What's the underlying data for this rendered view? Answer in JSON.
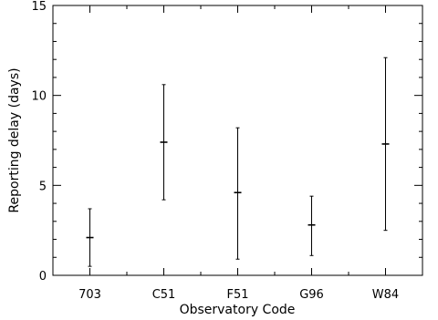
{
  "chart_data": {
    "type": "errorbar",
    "title": "",
    "xlabel": "Observatory Code",
    "ylabel": "Reporting delay (days)",
    "ylim": [
      0,
      15
    ],
    "yticks": [
      0,
      5,
      10,
      15
    ],
    "grid": false,
    "categories": [
      "703",
      "C51",
      "F51",
      "G96",
      "W84"
    ],
    "series": [
      {
        "values": [
          2.1,
          7.4,
          4.6,
          2.8,
          7.3
        ],
        "lower": [
          0.5,
          4.2,
          0.9,
          1.1,
          2.5
        ],
        "upper": [
          3.7,
          10.6,
          8.2,
          4.4,
          12.1
        ]
      }
    ]
  }
}
